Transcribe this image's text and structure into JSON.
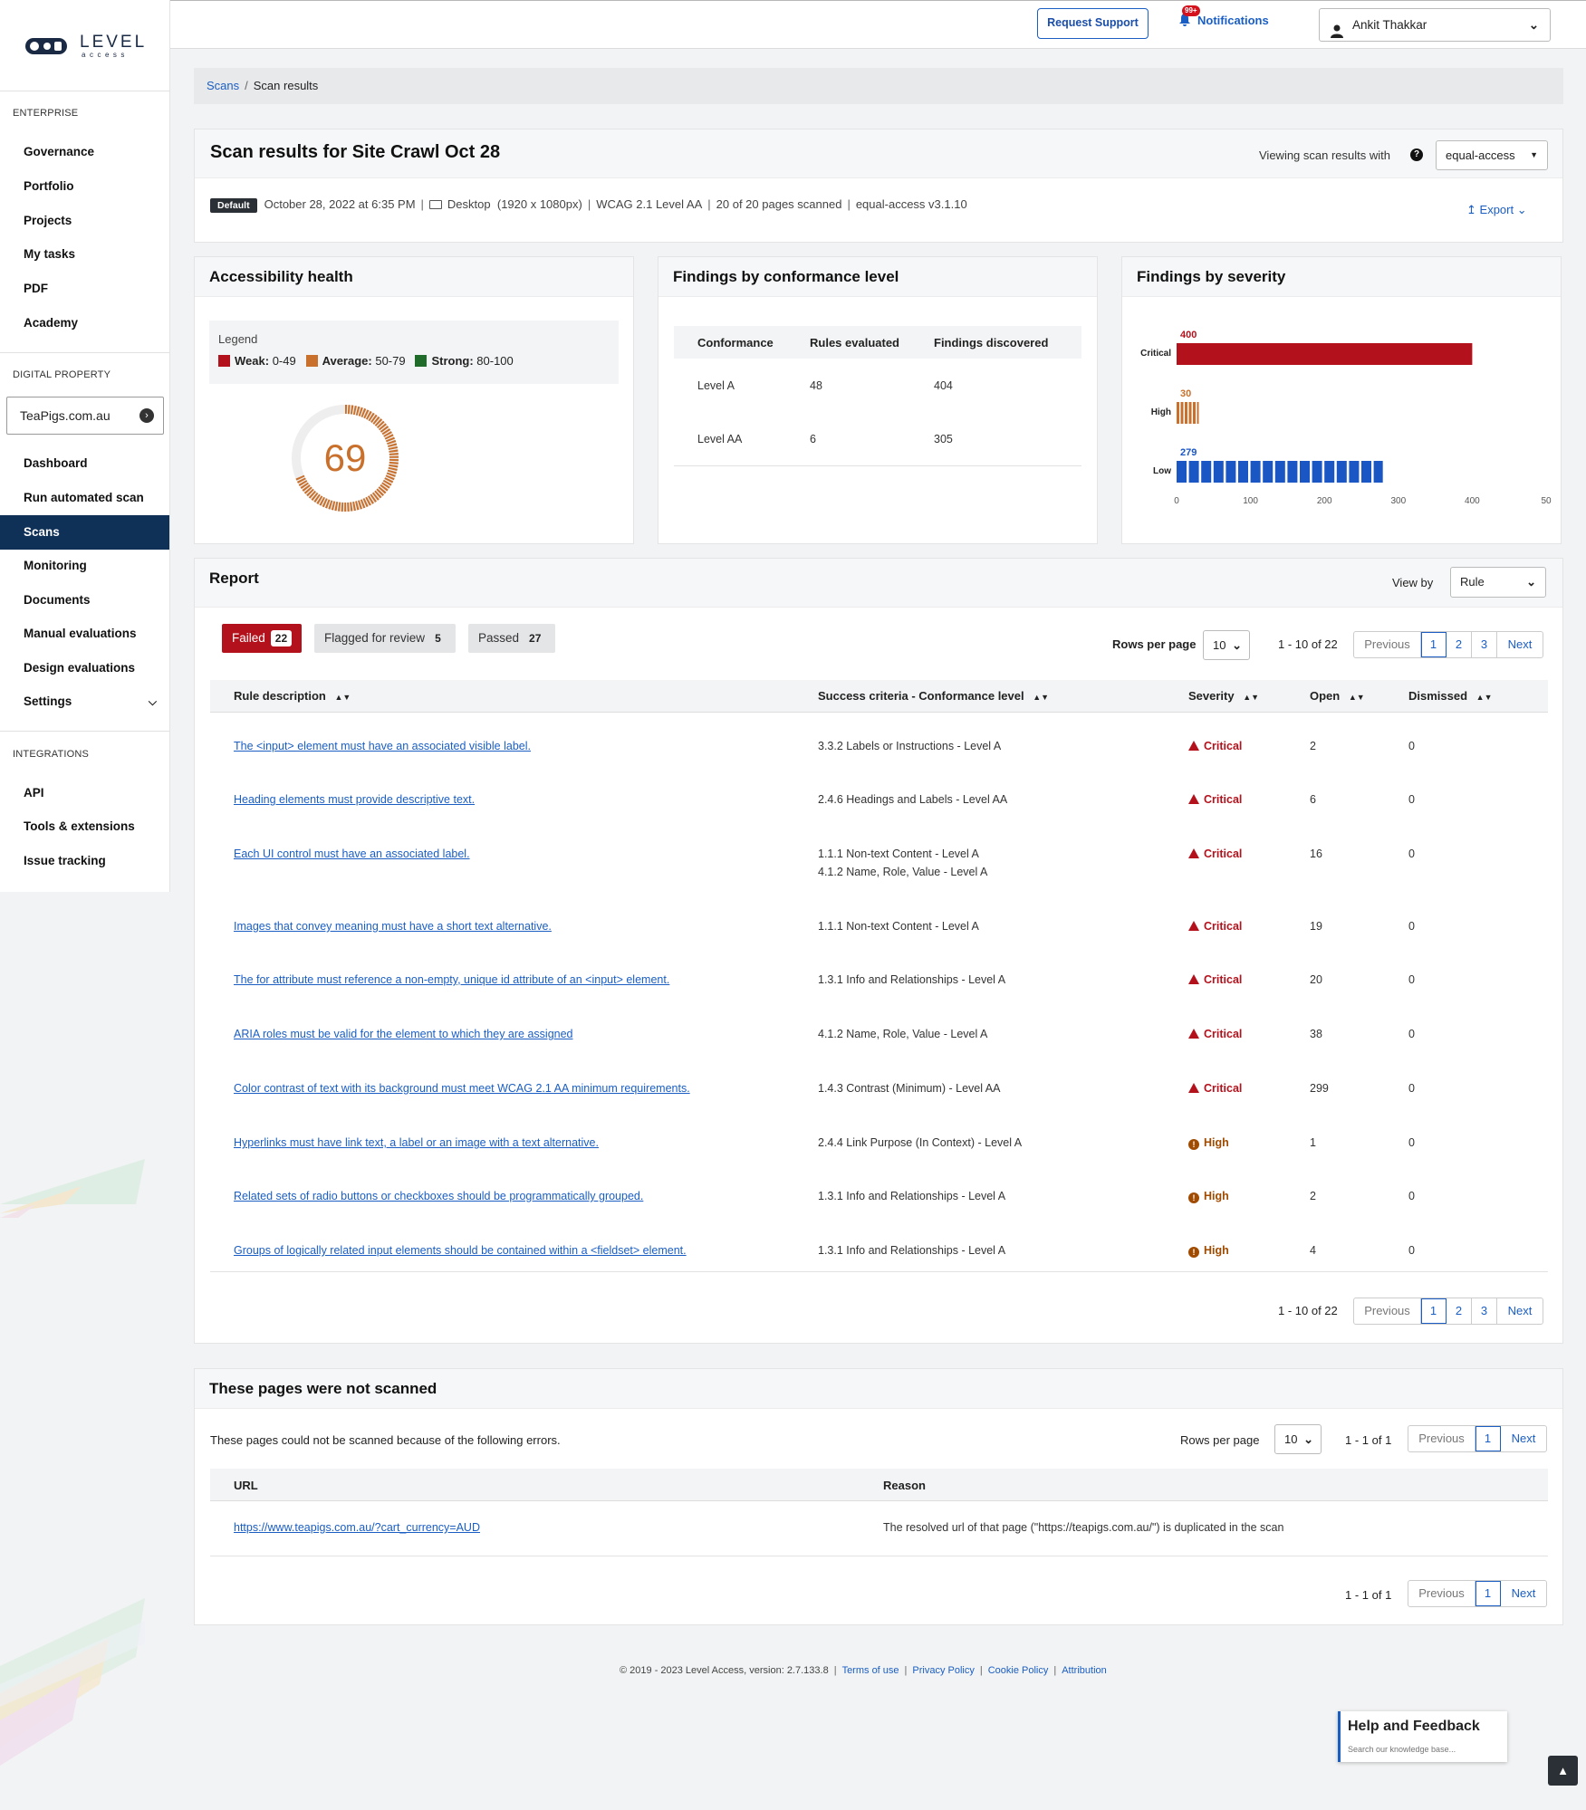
{
  "brand": {
    "logo_text": "LEVEL",
    "logo_sub": "access"
  },
  "sidebar": {
    "enterprise_label": "ENTERPRISE",
    "enterprise_items": [
      "Governance",
      "Portfolio",
      "Projects",
      "My tasks",
      "PDF",
      "Academy"
    ],
    "digital_label": "DIGITAL PROPERTY",
    "property_value": "TeaPigs.com.au",
    "digital_items": [
      "Dashboard",
      "Run automated scan",
      "Scans",
      "Monitoring",
      "Documents",
      "Manual evaluations",
      "Design evaluations",
      "Settings"
    ],
    "active_item": "Scans",
    "integrations_label": "INTEGRATIONS",
    "integration_items": [
      "API",
      "Tools & extensions",
      "Issue tracking"
    ]
  },
  "header": {
    "request_support": "Request Support",
    "notifications_badge": "99+",
    "notifications_label": "Notifications",
    "user_name": "Ankit Thakkar"
  },
  "breadcrumb": {
    "root": "Scans",
    "current": "Scan results"
  },
  "scan": {
    "title": "Scan results for Site Crawl Oct 28",
    "viewing_label": "Viewing scan results with",
    "engine_select": "equal-access",
    "default_tag": "Default",
    "date": "October 28, 2022 at 6:35 PM",
    "device": "Desktop",
    "resolution": "(1920 x 1080px)",
    "standard": "WCAG 2.1 Level AA",
    "pages": "20 of 20 pages scanned",
    "engine_version": "equal-access v3.1.10",
    "export": "Export"
  },
  "health": {
    "title": "Accessibility health",
    "legend_title": "Legend",
    "legend": [
      {
        "name": "Weak:",
        "range": "0-49",
        "color": "#b3121c"
      },
      {
        "name": "Average:",
        "range": "50-79",
        "color": "#c8702c"
      },
      {
        "name": "Strong:",
        "range": "80-100",
        "color": "#1e6b2a"
      }
    ],
    "score": "69",
    "score_value": 69,
    "score_color": "#c8702c"
  },
  "conformance": {
    "title": "Findings by conformance level",
    "headers": [
      "Conformance",
      "Rules evaluated",
      "Findings discovered"
    ],
    "rows": [
      {
        "level": "Level A",
        "rules": "48",
        "findings": "404"
      },
      {
        "level": "Level AA",
        "rules": "6",
        "findings": "305"
      }
    ]
  },
  "chart_data": {
    "type": "bar",
    "title": "Findings by severity",
    "orientation": "horizontal",
    "categories": [
      "Critical",
      "High",
      "Low"
    ],
    "values": [
      400,
      30,
      279
    ],
    "colors": [
      "#b3121c",
      "#c8702c",
      "#1a56c4"
    ],
    "xlim": [
      0,
      500
    ],
    "xticks": [
      "0",
      "100",
      "200",
      "300",
      "400",
      "50"
    ],
    "grid": false
  },
  "report": {
    "title": "Report",
    "view_by_label": "View by",
    "view_by_value": "Rule",
    "tabs": [
      {
        "label": "Failed",
        "count": "22"
      },
      {
        "label": "Flagged for review",
        "count": "5"
      },
      {
        "label": "Passed",
        "count": "27"
      }
    ],
    "rows_per_page_label": "Rows per page",
    "rows_per_page": "10",
    "range": "1 - 10 of 22",
    "pager": {
      "prev": "Previous",
      "pages": [
        "1",
        "2",
        "3"
      ],
      "next": "Next"
    },
    "columns": [
      "Rule description",
      "Success criteria - Conformance level",
      "Severity",
      "Open",
      "Dismissed"
    ],
    "rows": [
      {
        "rule": "The <input> element must have an associated visible label.",
        "criteria": "3.3.2 Labels or Instructions - Level A",
        "criteria2": "",
        "severity": "Critical",
        "open": "2",
        "dismissed": "0"
      },
      {
        "rule": "Heading elements must provide descriptive text.",
        "criteria": "2.4.6 Headings and Labels - Level AA",
        "criteria2": "",
        "severity": "Critical",
        "open": "6",
        "dismissed": "0"
      },
      {
        "rule": "Each UI control must have an associated label.",
        "criteria": "1.1.1 Non-text Content - Level A",
        "criteria2": "4.1.2 Name, Role, Value - Level A",
        "severity": "Critical",
        "open": "16",
        "dismissed": "0"
      },
      {
        "rule": "Images that convey meaning must have a short text alternative.",
        "criteria": "1.1.1 Non-text Content - Level A",
        "criteria2": "",
        "severity": "Critical",
        "open": "19",
        "dismissed": "0"
      },
      {
        "rule": "The for attribute must reference a non-empty, unique id attribute of an <input> element.",
        "criteria": "1.3.1 Info and Relationships - Level A",
        "criteria2": "",
        "severity": "Critical",
        "open": "20",
        "dismissed": "0"
      },
      {
        "rule": "ARIA roles must be valid for the element to which they are assigned",
        "criteria": "4.1.2 Name, Role, Value - Level A",
        "criteria2": "",
        "severity": "Critical",
        "open": "38",
        "dismissed": "0"
      },
      {
        "rule": "Color contrast of text with its background must meet WCAG 2.1 AA minimum requirements.",
        "criteria": "1.4.3 Contrast (Minimum) - Level AA",
        "criteria2": "",
        "severity": "Critical",
        "open": "299",
        "dismissed": "0"
      },
      {
        "rule": "Hyperlinks must have link text, a label or an image with a text alternative.",
        "criteria": "2.4.4 Link Purpose (In Context) - Level A",
        "criteria2": "",
        "severity": "High",
        "open": "1",
        "dismissed": "0"
      },
      {
        "rule": "Related sets of radio buttons or checkboxes should be programmatically grouped.",
        "criteria": "1.3.1 Info and Relationships - Level A",
        "criteria2": "",
        "severity": "High",
        "open": "2",
        "dismissed": "0"
      },
      {
        "rule": "Groups of logically related input elements should be contained within a <fieldset> element.",
        "criteria": "1.3.1 Info and Relationships - Level A",
        "criteria2": "",
        "severity": "High",
        "open": "4",
        "dismissed": "0"
      }
    ]
  },
  "not_scanned": {
    "title": "These pages were not scanned",
    "desc": "These pages could not be scanned because of the following errors.",
    "rows_per_page_label": "Rows per page",
    "rows_per_page": "10",
    "range": "1 - 1 of 1",
    "pager": {
      "prev": "Previous",
      "pages": [
        "1"
      ],
      "next": "Next"
    },
    "columns": [
      "URL",
      "Reason"
    ],
    "rows": [
      {
        "url": "https://www.teapigs.com.au/?cart_currency=AUD",
        "reason": "The resolved url of that page (\"https://teapigs.com.au/\") is duplicated in the scan"
      }
    ]
  },
  "footer": {
    "copyright": "© 2019 - 2023 Level Access,  version: 2.7.133.8",
    "links": [
      "Terms of use",
      "Privacy Policy",
      "Cookie Policy",
      "Attribution"
    ]
  },
  "help": {
    "title": "Help and Feedback",
    "placeholder": "Search our knowledge base..."
  }
}
